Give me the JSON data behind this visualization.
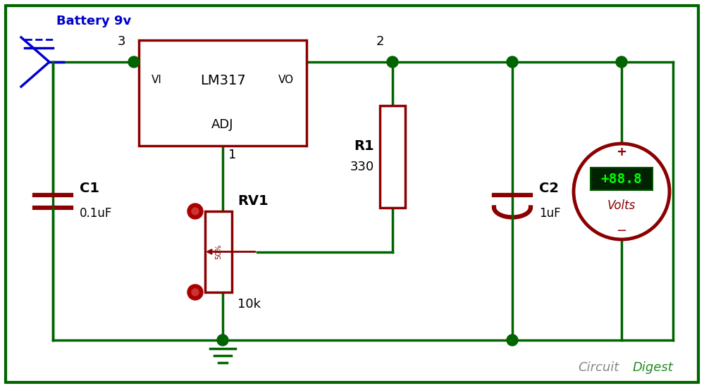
{
  "bg_color": "#ffffff",
  "border_color": "#006400",
  "wire_color": "#006400",
  "component_color": "#8B0000",
  "battery_color": "#0000cd",
  "text_color": "#000000",
  "node_color": "#006400",
  "watermark_circuit": "Circuit",
  "watermark_digest": "Digest",
  "lm317_label": "LM317",
  "lm317_vi": "VI",
  "lm317_vo": "VO",
  "lm317_adj": "ADJ",
  "r1_label": "R1",
  "r1_value": "330",
  "rv1_label": "RV1",
  "rv1_value": "10k",
  "rv1_pct": "50%",
  "c1_label": "C1",
  "c1_value": "0.1uF",
  "c2_label": "C2",
  "c2_value": "1uF",
  "battery_label": "Battery 9v",
  "node2_label": "2",
  "node3_label": "3",
  "node1_label": "1",
  "voltmeter_value": "+88.8",
  "voltmeter_unit": "Volts",
  "plus_label": "+",
  "minus_label": "−"
}
